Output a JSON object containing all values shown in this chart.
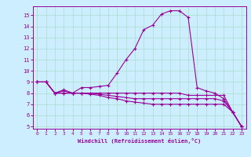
{
  "xlabel": "Windchill (Refroidissement éolien,°C)",
  "background_color": "#cceeff",
  "grid_color": "#aaddcc",
  "line_color": "#990099",
  "xlim": [
    -0.5,
    23.5
  ],
  "ylim": [
    4.8,
    15.8
  ],
  "yticks": [
    5,
    6,
    7,
    8,
    9,
    10,
    11,
    12,
    13,
    14,
    15
  ],
  "xticks": [
    0,
    1,
    2,
    3,
    4,
    5,
    6,
    7,
    8,
    9,
    10,
    11,
    12,
    13,
    14,
    15,
    16,
    17,
    18,
    19,
    20,
    21,
    22,
    23
  ],
  "curve1_x": [
    0,
    1,
    2,
    3,
    4,
    5,
    6,
    7,
    8,
    9,
    10,
    11,
    12,
    13,
    14,
    15,
    16,
    17,
    18,
    19,
    20,
    21,
    22,
    23
  ],
  "curve1_y": [
    9.0,
    9.0,
    8.0,
    8.3,
    8.0,
    8.5,
    8.5,
    8.6,
    8.7,
    9.8,
    11.0,
    12.0,
    13.7,
    14.1,
    15.1,
    15.4,
    15.4,
    14.8,
    8.5,
    8.2,
    8.0,
    7.5,
    6.3,
    5.0
  ],
  "curve2_x": [
    0,
    1,
    2,
    3,
    4,
    5,
    6,
    7,
    8,
    9,
    10,
    11,
    12,
    13,
    14,
    15,
    16,
    17,
    18,
    19,
    20,
    21,
    22,
    23
  ],
  "curve2_y": [
    9.0,
    9.0,
    8.0,
    8.2,
    8.0,
    8.0,
    8.0,
    8.0,
    8.0,
    8.0,
    8.0,
    8.0,
    8.0,
    8.0,
    8.0,
    8.0,
    8.0,
    7.8,
    7.8,
    7.8,
    7.8,
    7.8,
    6.3,
    5.0
  ],
  "curve3_x": [
    0,
    1,
    2,
    3,
    4,
    5,
    6,
    7,
    8,
    9,
    10,
    11,
    12,
    13,
    14,
    15,
    16,
    17,
    18,
    19,
    20,
    21,
    22,
    23
  ],
  "curve3_y": [
    9.0,
    9.0,
    8.0,
    8.0,
    8.0,
    8.0,
    8.0,
    7.9,
    7.8,
    7.7,
    7.6,
    7.5,
    7.5,
    7.5,
    7.5,
    7.5,
    7.5,
    7.5,
    7.5,
    7.5,
    7.5,
    7.3,
    6.3,
    5.0
  ],
  "curve4_x": [
    0,
    1,
    2,
    3,
    4,
    5,
    6,
    7,
    8,
    9,
    10,
    11,
    12,
    13,
    14,
    15,
    16,
    17,
    18,
    19,
    20,
    21,
    22,
    23
  ],
  "curve4_y": [
    9.0,
    9.0,
    8.0,
    8.0,
    8.0,
    8.0,
    7.9,
    7.8,
    7.6,
    7.5,
    7.3,
    7.2,
    7.1,
    7.0,
    7.0,
    7.0,
    7.0,
    7.0,
    7.0,
    7.0,
    7.0,
    7.0,
    6.3,
    5.0
  ]
}
